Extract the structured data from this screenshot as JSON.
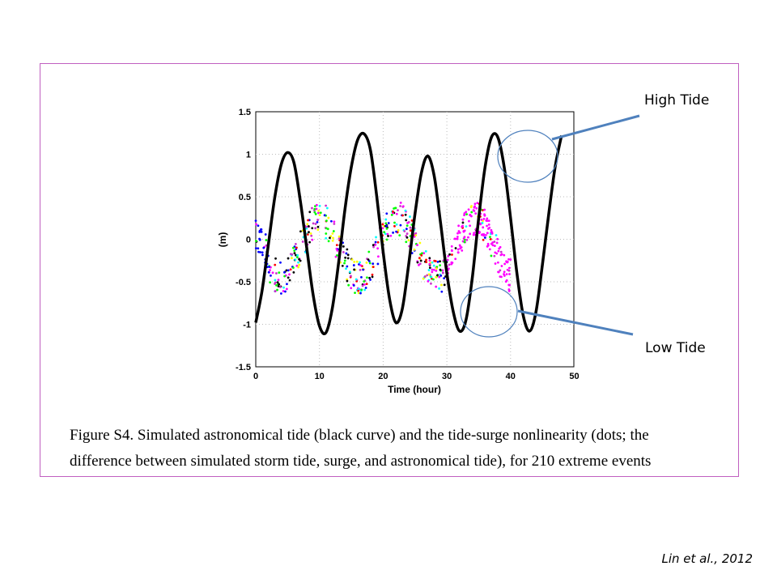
{
  "chart_data": {
    "type": "line",
    "xlabel": "Time (hour)",
    "ylabel": "(m)",
    "xlim": [
      0,
      50
    ],
    "ylim": [
      -1.5,
      1.5
    ],
    "xticks": [
      "0",
      "10",
      "20",
      "30",
      "40",
      "50"
    ],
    "yticks": [
      "1.5",
      "1",
      "0.5",
      "0",
      "-0.5",
      "-1",
      "-1.5"
    ],
    "grid": true,
    "series": [
      {
        "kind": "line",
        "color": "#000000",
        "x": [
          0,
          1,
          2,
          3,
          4,
          5,
          6,
          7,
          8,
          9,
          10,
          11,
          12,
          13,
          14,
          15,
          16,
          17,
          18,
          19,
          20,
          21,
          22,
          23,
          24,
          25,
          26,
          27,
          28,
          29,
          30,
          31,
          32,
          33,
          34,
          35,
          36,
          37,
          38,
          39,
          40,
          41,
          42,
          43,
          44,
          45,
          46,
          47,
          48
        ],
        "y": [
          -0.98,
          -0.6,
          -0.05,
          0.5,
          0.88,
          1.02,
          0.9,
          0.45,
          -0.1,
          -0.65,
          -1.02,
          -1.1,
          -0.82,
          -0.28,
          0.35,
          0.85,
          1.17,
          1.24,
          1.05,
          0.5,
          -0.15,
          -0.7,
          -0.98,
          -0.82,
          -0.3,
          0.3,
          0.78,
          0.98,
          0.75,
          0.2,
          -0.4,
          -0.85,
          -1.08,
          -0.95,
          -0.45,
          0.25,
          0.85,
          1.2,
          1.2,
          0.85,
          0.25,
          -0.4,
          -0.9,
          -1.08,
          -0.85,
          -0.3,
          0.3,
          0.85,
          1.22
        ]
      }
    ],
    "annotations": [
      "High Tide",
      "Low Tide"
    ]
  },
  "caption_lines": [
    "Figure S4. Simulated astronomical tide (black curve) and the tide-surge nonlinearity (dots; the",
    "difference between simulated storm tide, surge, and astronomical tide), for 210 extreme events"
  ],
  "citation": "Lin et al., 2012",
  "colors": {
    "frame": "#c060c0",
    "callout": "#4f81bd",
    "dots": [
      "#ff00ff",
      "#00ffff",
      "#ffff00",
      "#00ff00",
      "#0000ff",
      "#000000",
      "#ff0000",
      "#cc33cc"
    ]
  }
}
